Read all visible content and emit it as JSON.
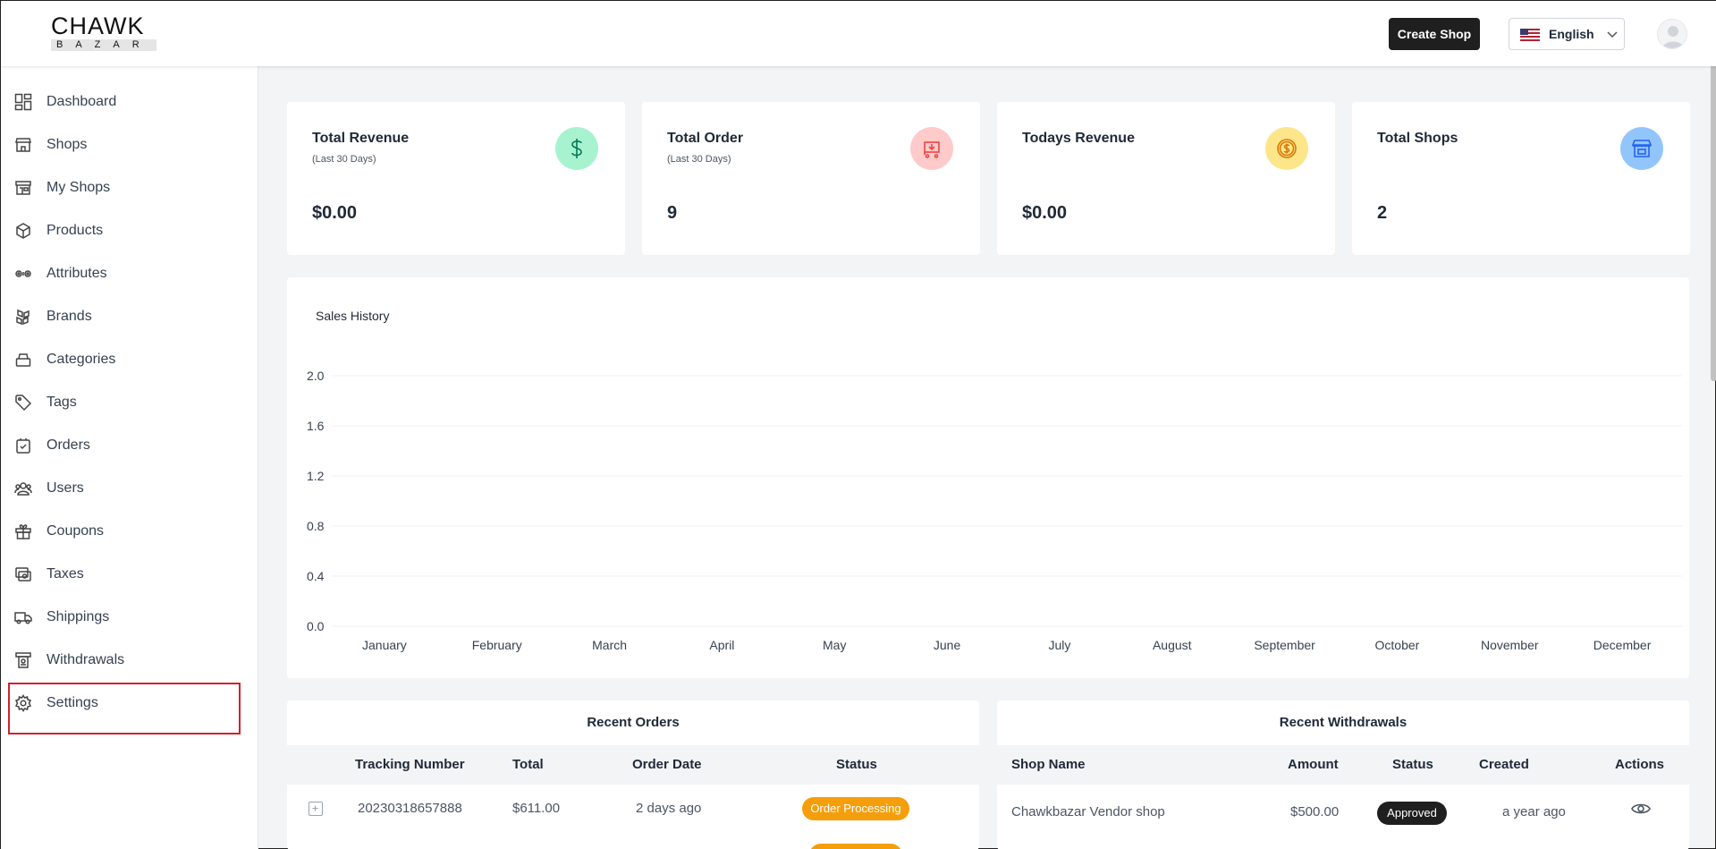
{
  "header": {
    "logo_top": "CHAWK",
    "logo_bottom": "BAZAR",
    "create_shop_label": "Create Shop",
    "language_label": "English",
    "language_icon": "us-flag-icon"
  },
  "sidebar": {
    "items": [
      {
        "label": "Dashboard",
        "icon": "dashboard-icon"
      },
      {
        "label": "Shops",
        "icon": "shop-icon"
      },
      {
        "label": "My Shops",
        "icon": "my-shops-icon"
      },
      {
        "label": "Products",
        "icon": "box-icon"
      },
      {
        "label": "Attributes",
        "icon": "attributes-icon"
      },
      {
        "label": "Brands",
        "icon": "brands-icon"
      },
      {
        "label": "Categories",
        "icon": "categories-icon"
      },
      {
        "label": "Tags",
        "icon": "tag-icon"
      },
      {
        "label": "Orders",
        "icon": "orders-icon"
      },
      {
        "label": "Users",
        "icon": "users-icon"
      },
      {
        "label": "Coupons",
        "icon": "gift-icon"
      },
      {
        "label": "Taxes",
        "icon": "taxes-icon"
      },
      {
        "label": "Shippings",
        "icon": "truck-icon"
      },
      {
        "label": "Withdrawals",
        "icon": "withdrawals-icon"
      },
      {
        "label": "Settings",
        "icon": "gear-icon"
      }
    ]
  },
  "stats": [
    {
      "title": "Total Revenue",
      "subtitle": "(Last 30 Days)",
      "value": "$0.00",
      "icon": "dollar-icon",
      "icon_bg": "#a7f3d0",
      "icon_color": "#047857"
    },
    {
      "title": "Total Order",
      "subtitle": "(Last 30 Days)",
      "value": "9",
      "icon": "cart-icon",
      "icon_bg": "#fecaca",
      "icon_color": "#ef4444"
    },
    {
      "title": "Todays Revenue",
      "subtitle": "",
      "value": "$0.00",
      "icon": "coin-icon",
      "icon_bg": "#fde68a",
      "icon_color": "#d97706"
    },
    {
      "title": "Total Shops",
      "subtitle": "",
      "value": "2",
      "icon": "store-icon",
      "icon_bg": "#93c5fd",
      "icon_color": "#2563eb"
    }
  ],
  "chart_data": {
    "type": "bar",
    "title": "Sales History",
    "categories": [
      "January",
      "February",
      "March",
      "April",
      "May",
      "June",
      "July",
      "August",
      "September",
      "October",
      "November",
      "December"
    ],
    "series": [
      {
        "values": [
          0,
          0,
          0,
          0,
          0,
          0,
          0,
          0,
          0,
          0,
          0,
          0
        ]
      }
    ],
    "yticks": [
      "0.0",
      "0.4",
      "0.8",
      "1.2",
      "1.6",
      "2.0"
    ],
    "ylim": [
      0,
      2
    ],
    "xlabel": "",
    "ylabel": "",
    "grid": true
  },
  "recent_orders": {
    "title": "Recent Orders",
    "columns": [
      "Tracking Number",
      "Total",
      "Order Date",
      "Status"
    ],
    "rows": [
      {
        "tracking": "20230318657888",
        "total": "$611.00",
        "date": "2 days ago",
        "status": "Order Processing",
        "status_color": "#f59e0b"
      }
    ]
  },
  "recent_withdrawals": {
    "title": "Recent Withdrawals",
    "columns": [
      "Shop Name",
      "Amount",
      "Status",
      "Created",
      "Actions"
    ],
    "rows": [
      {
        "shop": "Chawkbazar Vendor shop",
        "amount": "$500.00",
        "status": "Approved",
        "created": "a year ago",
        "action_icon": "eye-icon"
      }
    ]
  }
}
